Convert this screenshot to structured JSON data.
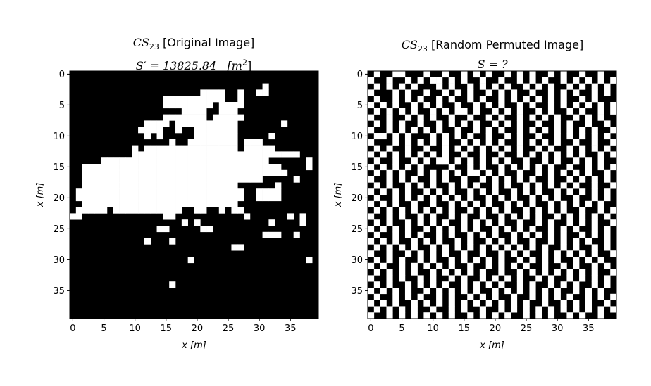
{
  "chart_data": [
    {
      "type": "heatmap",
      "title_symbol": "CS",
      "title_subscript": "23",
      "title_text": "[Original Image]",
      "subtitle_prefix": "S′ = 13825.84",
      "subtitle_unit": "[m",
      "subtitle_unit_exp": "2",
      "subtitle_unit_close": "]",
      "xlabel": "x [m]",
      "ylabel": "x [m]",
      "xlim": [
        0,
        39
      ],
      "ylim": [
        39,
        0
      ],
      "xticks": [
        "0",
        "5",
        "10",
        "15",
        "20",
        "25",
        "30",
        "35"
      ],
      "yticks": [
        "0",
        "5",
        "10",
        "15",
        "20",
        "25",
        "30",
        "35"
      ],
      "colormap": [
        "#000000",
        "#ffffff"
      ],
      "grid": [
        "........................................",
        "........................................",
        "...............................*........",
        ".....................****..*..**........",
        "...............**********..*............",
        "...............********.****............",
        "..................****..***.............",
        "...............*******.*****............",
        "............****.**********.......*.....",
        "...........****..*..*******.............",
        "............*.*.....*******.....*.......",
        "................*..********.***.........",
        "..........*.***************.*****.......",
        "..........***************************...",
        ".....***************************......*.",
        "..********************************....*.",
        "..*********************************.....",
        "..*****************************.....*...",
        "..*************************......*......",
        ".***************************..****......",
        ".***************************..****......",
        "..*************************.............",
        ".*****.***********..**..*.**............",
        "**.............**...........*......*.*..",
        "..................*.*...........*....*..",
        "..............**.....**.................",
        "...............................***..*...",
        "............*...*.......................",
        "..........................**.............",
        "........................................",
        "...................*..................*.",
        "........................................",
        "........................................",
        "........................................",
        "................*.......................",
        "........................................",
        "........................................",
        "........................................",
        "........................................",
        "........................................"
      ]
    },
    {
      "type": "heatmap",
      "title_symbol": "CS",
      "title_subscript": "23",
      "title_text": "[Random Permuted Image]",
      "subtitle_prefix": "S = ?",
      "xlabel": "x [m]",
      "ylabel": "x [m]",
      "xlim": [
        0,
        39
      ],
      "ylim": [
        39,
        0
      ],
      "xticks": [
        "0",
        "5",
        "10",
        "15",
        "20",
        "25",
        "30",
        "35"
      ],
      "yticks": [
        "0",
        "5",
        "10",
        "15",
        "20",
        "25",
        "30",
        "35"
      ],
      "colormap": [
        "#000000",
        "#ffffff"
      ],
      "grid": [
        ".*..**...*..*..*.*.*..*.*.*..*.*..*..*..",
        "*..*..*.*.**.*.*..*..*..*.*.*..*.*.*.*.*",
        ".*.*.*.*...*.*..*.*.*.*..*.*.*..*.*.*.*.",
        "*...*.*..*..*.*.*..*.*.*..*..*.*.*..*.*.",
        ".*..*.*.*..*.*..*.*..*.*.*.*.*.*..*.*...",
        "*.*.*..*.*.*..*..*.*.*..*.*..*.*.*.*.*.*",
        ".*.*.*.*..*.*.**.*..*.*.*..*.*..*.*..*.*",
        "*..*..*.*.*..*..*..*.*..*.*.*.*..*.*.*..",
        ".*.*.*..*..*.*.*.*..*.*.*..*..*.*..*..*.",
        "*..*.*.*.*.*..*..*.*.*..*.*.*.*.*.*.*..*",
        ".**.*.*...*.*.*.*..*..*.*..*..*.*.*.*.*.",
        "*...*.*.*.*.*..*.*.*.*..*.*.*.*..*..*..*",
        ".*.*..*..*..*.*.*.*.*.*.*..*.*..*.*.*.*.",
        "*.*.*.*.*.*.*..*..*..*..*.*.*.*.*.*..*.*",
        ".*..*..*.*.**.*.*.*.*.*..*..*.*..*.*.*..",
        "*.*.*.*.*....*..*.*..*.*.*.*.*..*..*.*.*",
        ".*.*.*..*.*.*.*.**.*.*..*..*.*.*.*.*..*.",
        "*..*.*.*..*.*..*..*.*.*.*.*..*..*.*.*.*.",
        ".*.*..*.*.*..*.*.*..*.*..*.*.*.*.*..*..*",
        "*.*.*.*..*.*.*..*.*.*..*.*.*..*.*.*.*.*.",
        ".*..*.*.*.*.*.*.*..*.*.*..*.*.*..*..*.*.",
        "*.*.*..*..*..*.*.*.*..*.*.*..*.*.*.*.*..",
        ".*.*.*.*.*.*.*..*.*.*.*..*.*.*.*..*..*.*",
        "*..*.*..*.*..*.*..*..*.*.*.*..*.*.*.*.*.",
        ".*.*..*.*.*.*..*.*.*.*..*..*.*..*.*.*..*",
        "*.*.*.*..*.*.*.*.*..*.*.*.*..*.*.*..*.*.",
        ".*..*.*.*..*.*..*.*.*..*.*.*.*.*..*.*.*.",
        "*.*.*..*.*.*..*.*..*.*.*..*..*.*.*.*..*.",
        ".*.*.*.*..*.*.*.*.*.*.*.*.*.*..*.*..*.*.",
        "*..*..*.*.*.*..*..*..*.*.*..*.*.*.*.*..*",
        ".*.*.*..*.*..*.*.*.*.*..*.*.*.*..*.*.*..",
        "*.*..*.*.*.*.*..*..*.*.*.*..*..*.*..*.*.",
        ".*.*.*.*..*.*.*.*.*..*..*.*.*.*.*.*.*..*",
        "*..*.*..*.*..*.*..*.*.*.*..*.*..*.*.*.*.",
        ".*.*..*.*.*.*..*.*.*.*..*.*..*.*.*..*.*.",
        "*.*.*.*..*.*.*.*.*..*.*.*.*.*.*..*.*.*..",
        ".*..*.*.*..*.*..*.*.*..*..*.*.*.*..*.*.*",
        "*.*.*..*.*.*.*.*.*.*.*.*.*..*..*.*.*..*.",
        ".*.*.*.*..*..*.*..*..*.*.*.*.*.*.*.*.*.*",
        "*..*.*.*.*.*.*..*.*.*.*..*.*.*..*.*..*.."
      ]
    }
  ]
}
